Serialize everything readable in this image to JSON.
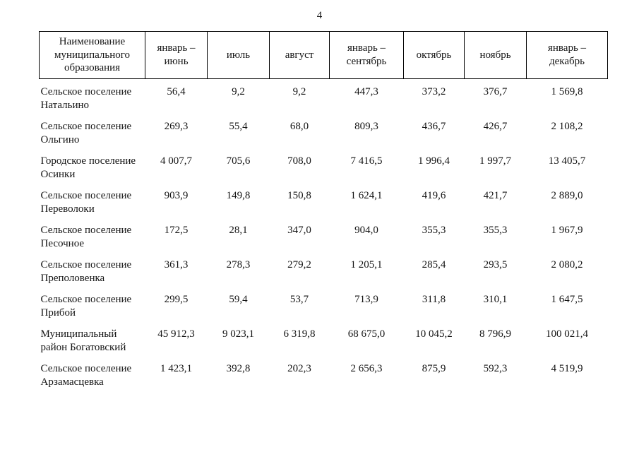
{
  "page": {
    "number": "4"
  },
  "table": {
    "headers": [
      "Наименование муниципального образования",
      "январь – июнь",
      "июль",
      "август",
      "январь – сентябрь",
      "октябрь",
      "ноябрь",
      "январь – декабрь"
    ],
    "rows": [
      {
        "name": "Сельское поселение Натальино",
        "values": [
          "56,4",
          "9,2",
          "9,2",
          "447,3",
          "373,2",
          "376,7",
          "1 569,8"
        ]
      },
      {
        "name": "Сельское поселение Ольгино",
        "values": [
          "269,3",
          "55,4",
          "68,0",
          "809,3",
          "436,7",
          "426,7",
          "2 108,2"
        ]
      },
      {
        "name": "Городское поселение Осинки",
        "values": [
          "4 007,7",
          "705,6",
          "708,0",
          "7 416,5",
          "1 996,4",
          "1 997,7",
          "13 405,7"
        ]
      },
      {
        "name": "Сельское поселение Переволоки",
        "values": [
          "903,9",
          "149,8",
          "150,8",
          "1 624,1",
          "419,6",
          "421,7",
          "2 889,0"
        ]
      },
      {
        "name": "Сельское поселение Песочное",
        "values": [
          "172,5",
          "28,1",
          "347,0",
          "904,0",
          "355,3",
          "355,3",
          "1 967,9"
        ]
      },
      {
        "name": "Сельское поселение Преполовенка",
        "values": [
          "361,3",
          "278,3",
          "279,2",
          "1 205,1",
          "285,4",
          "293,5",
          "2 080,2"
        ]
      },
      {
        "name": "Сельское поселение Прибой",
        "values": [
          "299,5",
          "59,4",
          "53,7",
          "713,9",
          "311,8",
          "310,1",
          "1 647,5"
        ]
      },
      {
        "name": "Муниципальный район Богатовский",
        "values": [
          "45 912,3",
          "9 023,1",
          "6 319,8",
          "68 675,0",
          "10 045,2",
          "8 796,9",
          "100 021,4"
        ]
      },
      {
        "name": "Сельское поселение Арзамасцевка",
        "values": [
          "1 423,1",
          "392,8",
          "202,3",
          "2 656,3",
          "875,9",
          "592,3",
          "4 519,9"
        ]
      }
    ]
  }
}
